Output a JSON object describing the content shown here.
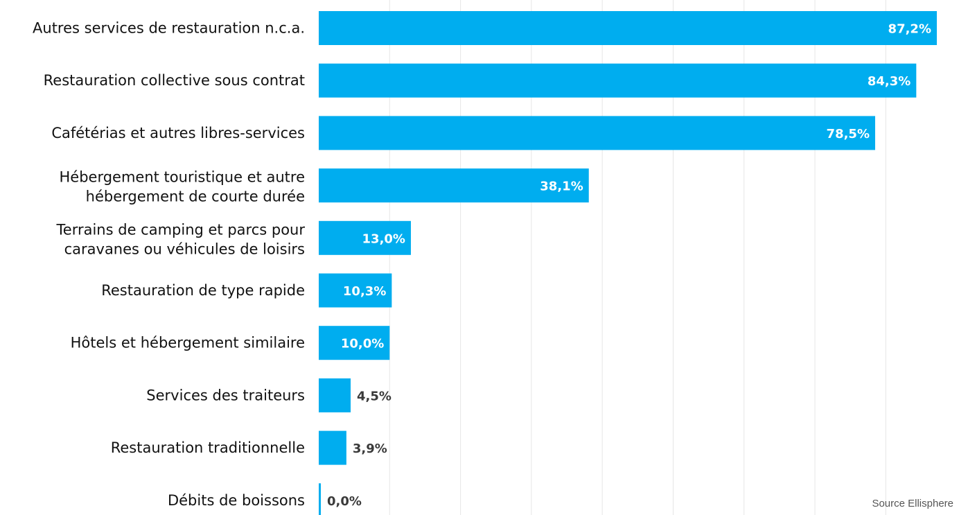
{
  "chart_data": {
    "type": "bar",
    "orientation": "horizontal",
    "categories": [
      [
        "Autres services de restauration n.c.a."
      ],
      [
        "Restauration collective sous contrat"
      ],
      [
        "Cafétérias et autres libres-services"
      ],
      [
        "Hébergement touristique et autre",
        "hébergement de courte durée"
      ],
      [
        "Terrains de camping et parcs pour",
        "caravanes ou véhicules de loisirs"
      ],
      [
        "Restauration de type rapide"
      ],
      [
        "Hôtels et hébergement similaire"
      ],
      [
        "Services des traiteurs"
      ],
      [
        "Restauration traditionnelle"
      ],
      [
        "Débits de boissons"
      ]
    ],
    "values": [
      87.2,
      84.3,
      78.5,
      38.1,
      13.0,
      10.3,
      10.0,
      4.5,
      3.9,
      0.0
    ],
    "value_labels": [
      "87,2%",
      "84,3%",
      "78,5%",
      "38,1%",
      "13,0%",
      "10,3%",
      "10,0%",
      "4,5%",
      "3,9%",
      "0,0%"
    ],
    "xlim": [
      0,
      87.2
    ],
    "grid": true,
    "legend": "none",
    "bar_color": "#00adef",
    "grid_color": "#e6e6e6"
  },
  "source": "Source Ellisphere"
}
